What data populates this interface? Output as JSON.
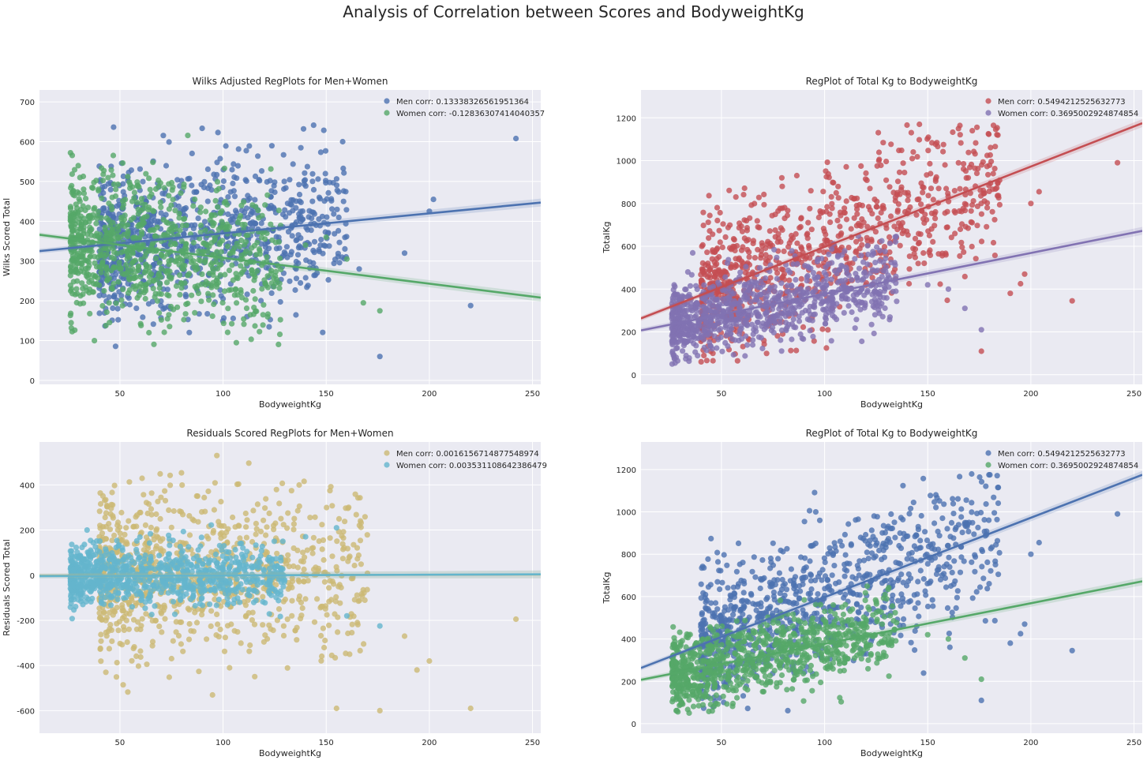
{
  "figure": {
    "suptitle": "Analysis of Correlation between Scores and BodyweightKg"
  },
  "chart_data": [
    {
      "type": "scatter",
      "title": "Wilks Adjusted RegPlots for Men+Women",
      "xlabel": "BodyweightKg",
      "ylabel": "Wilks Scored Total",
      "xlim": [
        11,
        254
      ],
      "ylim": [
        -10,
        730
      ],
      "xticks": [
        50,
        100,
        150,
        200,
        250
      ],
      "yticks": [
        0,
        100,
        200,
        300,
        400,
        500,
        600,
        700
      ],
      "grid": true,
      "legend_position": "top-right",
      "series": [
        {
          "name": "Men corr: 0.13338326561951364",
          "color": "#4C72B0",
          "cloud": {
            "x_range": [
              40,
              160
            ],
            "y_range": [
              60,
              650
            ],
            "y_center": 350
          },
          "outliers": [
            [
              242,
              608
            ],
            [
              220,
              188
            ],
            [
              202,
              455
            ],
            [
              200,
              425
            ],
            [
              188,
              320
            ],
            [
              176,
              60
            ],
            [
              166,
              280
            ],
            [
              158,
              600
            ]
          ],
          "regression": {
            "x": [
              11,
              254
            ],
            "y": [
              325,
              447
            ]
          }
        },
        {
          "name": "Women corr: -0.12836307414040357",
          "color": "#55A868",
          "cloud": {
            "x_range": [
              26,
              128
            ],
            "y_range": [
              90,
              685
            ],
            "y_center": 330
          },
          "outliers": [
            [
              176,
              175
            ],
            [
              168,
              195
            ],
            [
              160,
              305
            ],
            [
              150,
              360
            ],
            [
              140,
              340
            ]
          ],
          "regression": {
            "x": [
              11,
              254
            ],
            "y": [
              366,
              208
            ]
          }
        }
      ]
    },
    {
      "type": "scatter",
      "title": "RegPlot of Total Kg to BodyweightKg",
      "xlabel": "BodyweightKg",
      "ylabel": "TotalKg",
      "xlim": [
        11,
        254
      ],
      "ylim": [
        -45,
        1330
      ],
      "xticks": [
        50,
        100,
        150,
        200,
        250
      ],
      "yticks": [
        0,
        200,
        400,
        600,
        800,
        1000,
        1200
      ],
      "grid": true,
      "legend_position": "top-right",
      "series": [
        {
          "name": "Men corr: 0.5494212525632773",
          "color": "#C44E52",
          "cloud": {
            "x_range": [
              40,
              185
            ],
            "y_range": [
              60,
              1180
            ],
            "y_center": 500
          },
          "outliers": [
            [
              242,
              990
            ],
            [
              220,
              345
            ],
            [
              204,
              855
            ],
            [
              200,
              800
            ],
            [
              197,
              470
            ],
            [
              195,
              425
            ],
            [
              176,
              110
            ],
            [
              190,
              380
            ]
          ],
          "regression": {
            "x": [
              11,
              254
            ],
            "y": [
              263,
              1175
            ]
          }
        },
        {
          "name": "Women corr: 0.3695002924874854",
          "color": "#8172B2",
          "cloud": {
            "x_range": [
              26,
              135
            ],
            "y_range": [
              50,
              650
            ],
            "y_center": 330
          },
          "outliers": [
            [
              176,
              210
            ],
            [
              168,
              310
            ],
            [
              160,
              400
            ],
            [
              150,
              420
            ]
          ],
          "regression": {
            "x": [
              11,
              254
            ],
            "y": [
              207,
              672
            ]
          }
        }
      ]
    },
    {
      "type": "scatter",
      "title": "Residuals Scored RegPlots for Men+Women",
      "xlabel": "BodyweightKg",
      "ylabel": "Residuals Scored Total",
      "xlim": [
        11,
        254
      ],
      "ylim": [
        -700,
        590
      ],
      "xticks": [
        50,
        100,
        150,
        200,
        250
      ],
      "yticks": [
        -600,
        -400,
        -200,
        0,
        200,
        400
      ],
      "grid": true,
      "legend_position": "top-right",
      "series": [
        {
          "name": "Men corr: 0.0016156714877548974",
          "color": "#CCB974",
          "cloud": {
            "x_range": [
              40,
              170
            ],
            "y_range": [
              -640,
              530
            ],
            "y_center": 0
          },
          "outliers": [
            [
              242,
              -195
            ],
            [
              220,
              -590
            ],
            [
              200,
              -380
            ],
            [
              194,
              -420
            ],
            [
              188,
              -270
            ],
            [
              176,
              -600
            ],
            [
              97,
              530
            ],
            [
              155,
              -590
            ]
          ],
          "regression": {
            "x": [
              11,
              254
            ],
            "y": [
              -2,
              3
            ]
          }
        },
        {
          "name": "Women corr: 0.003531108642386479",
          "color": "#64B5CD",
          "cloud": {
            "x_range": [
              26,
              130
            ],
            "y_range": [
              -200,
              240
            ],
            "y_center": 0
          },
          "outliers": [
            [
              176,
              -225
            ],
            [
              160,
              -180
            ],
            [
              155,
              210
            ],
            [
              140,
              170
            ]
          ],
          "regression": {
            "x": [
              11,
              254
            ],
            "y": [
              -4,
              4
            ]
          }
        }
      ]
    },
    {
      "type": "scatter",
      "title": "RegPlot of Total Kg to BodyweightKg",
      "xlabel": "BodyweightKg",
      "ylabel": "TotalKg",
      "xlim": [
        11,
        254
      ],
      "ylim": [
        -45,
        1330
      ],
      "xticks": [
        50,
        100,
        150,
        200,
        250
      ],
      "yticks": [
        0,
        200,
        400,
        600,
        800,
        1000,
        1200
      ],
      "grid": true,
      "legend_position": "top-right",
      "series": [
        {
          "name": "Men corr: 0.5494212525632773",
          "color": "#4C72B0",
          "cloud": {
            "x_range": [
              40,
              185
            ],
            "y_range": [
              60,
              1180
            ],
            "y_center": 500
          },
          "outliers": [
            [
              242,
              990
            ],
            [
              220,
              345
            ],
            [
              204,
              855
            ],
            [
              200,
              800
            ],
            [
              197,
              470
            ],
            [
              195,
              425
            ],
            [
              176,
              110
            ],
            [
              190,
              380
            ]
          ],
          "regression": {
            "x": [
              11,
              254
            ],
            "y": [
              263,
              1175
            ]
          }
        },
        {
          "name": "Women corr: 0.3695002924874854",
          "color": "#55A868",
          "cloud": {
            "x_range": [
              26,
              135
            ],
            "y_range": [
              50,
              650
            ],
            "y_center": 330
          },
          "outliers": [
            [
              176,
              210
            ],
            [
              168,
              310
            ],
            [
              160,
              400
            ],
            [
              150,
              420
            ]
          ],
          "regression": {
            "x": [
              11,
              254
            ],
            "y": [
              207,
              672
            ]
          }
        }
      ]
    }
  ]
}
